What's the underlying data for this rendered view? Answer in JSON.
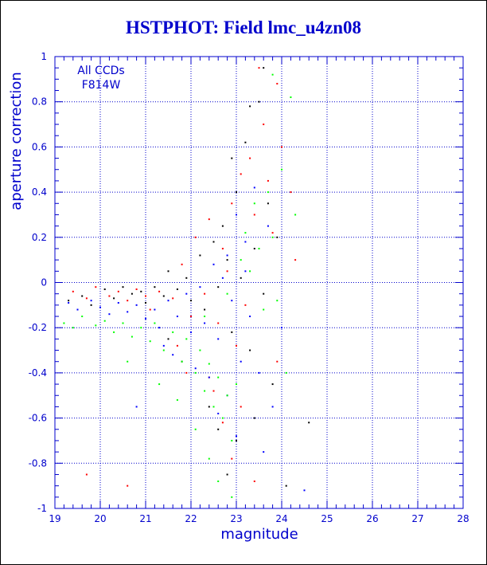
{
  "chart_data": {
    "type": "scatter",
    "title": "HSTPHOT: Field lmc_u4zn08",
    "xlabel": "magnitude",
    "ylabel": "aperture correction",
    "xlim": [
      19,
      28
    ],
    "ylim": [
      -1,
      1
    ],
    "x_ticks": [
      19,
      20,
      21,
      22,
      23,
      24,
      25,
      26,
      27,
      28
    ],
    "y_ticks": [
      -1,
      -0.8,
      -0.6,
      -0.4,
      -0.2,
      0,
      0.2,
      0.4,
      0.6,
      0.8,
      1
    ],
    "grid": true,
    "annotations": [
      "All CCDs",
      "F814W"
    ],
    "colors": {
      "axis": "#0000cc",
      "title": "#0000cc",
      "grid": "#0000cc"
    },
    "series": [
      {
        "color": "#000000",
        "points": [
          [
            19.3,
            -0.08
          ],
          [
            19.6,
            -0.06
          ],
          [
            19.8,
            -0.1
          ],
          [
            20.1,
            -0.03
          ],
          [
            20.3,
            -0.07
          ],
          [
            20.5,
            -0.02
          ],
          [
            20.7,
            -0.05
          ],
          [
            20.9,
            -0.04
          ],
          [
            21.0,
            -0.09
          ],
          [
            21.2,
            -0.02
          ],
          [
            21.4,
            -0.06
          ],
          [
            21.5,
            0.05
          ],
          [
            21.7,
            -0.03
          ],
          [
            21.9,
            0.02
          ],
          [
            22.0,
            -0.08
          ],
          [
            22.2,
            0.12
          ],
          [
            22.3,
            -0.12
          ],
          [
            22.5,
            0.18
          ],
          [
            22.6,
            -0.02
          ],
          [
            22.7,
            0.25
          ],
          [
            22.8,
            0.1
          ],
          [
            22.9,
            -0.22
          ],
          [
            23.0,
            0.4
          ],
          [
            23.1,
            0.02
          ],
          [
            23.2,
            0.62
          ],
          [
            23.3,
            -0.3
          ],
          [
            23.4,
            0.15
          ],
          [
            23.5,
            0.8
          ],
          [
            23.6,
            -0.05
          ],
          [
            23.7,
            0.35
          ],
          [
            23.8,
            -0.45
          ],
          [
            23.9,
            0.2
          ],
          [
            22.4,
            -0.55
          ],
          [
            22.6,
            -0.65
          ],
          [
            23.0,
            -0.7
          ],
          [
            22.8,
            -0.85
          ],
          [
            23.4,
            -0.6
          ],
          [
            21.8,
            -0.35
          ],
          [
            21.5,
            -0.25
          ],
          [
            24.1,
            -0.9
          ],
          [
            24.6,
            -0.62
          ],
          [
            22.9,
            0.55
          ],
          [
            23.3,
            0.78
          ],
          [
            23.6,
            0.95
          ]
        ]
      },
      {
        "color": "#ff0000",
        "points": [
          [
            19.4,
            -0.04
          ],
          [
            19.7,
            -0.07
          ],
          [
            19.9,
            -0.02
          ],
          [
            20.2,
            -0.06
          ],
          [
            20.4,
            -0.04
          ],
          [
            20.6,
            -0.08
          ],
          [
            20.8,
            -0.03
          ],
          [
            21.0,
            -0.06
          ],
          [
            21.1,
            -0.12
          ],
          [
            21.3,
            -0.04
          ],
          [
            21.6,
            -0.07
          ],
          [
            21.8,
            0.08
          ],
          [
            22.0,
            -0.15
          ],
          [
            22.1,
            0.2
          ],
          [
            22.3,
            -0.05
          ],
          [
            22.4,
            0.28
          ],
          [
            22.6,
            -0.18
          ],
          [
            22.7,
            0.15
          ],
          [
            22.9,
            0.35
          ],
          [
            23.0,
            -0.28
          ],
          [
            23.1,
            0.48
          ],
          [
            23.2,
            -0.1
          ],
          [
            23.3,
            0.55
          ],
          [
            23.4,
            0.3
          ],
          [
            23.5,
            0.95
          ],
          [
            23.6,
            0.7
          ],
          [
            23.7,
            0.45
          ],
          [
            23.8,
            0.22
          ],
          [
            23.9,
            -0.35
          ],
          [
            24.0,
            0.6
          ],
          [
            24.2,
            0.4
          ],
          [
            22.5,
            -0.48
          ],
          [
            22.7,
            -0.62
          ],
          [
            23.1,
            -0.55
          ],
          [
            22.9,
            -0.78
          ],
          [
            23.4,
            -0.88
          ],
          [
            21.9,
            -0.4
          ],
          [
            21.7,
            -0.28
          ],
          [
            20.6,
            -0.9
          ],
          [
            19.7,
            -0.85
          ],
          [
            24.3,
            0.1
          ],
          [
            23.9,
            0.88
          ],
          [
            22.8,
            0.05
          ],
          [
            22.4,
            -0.42
          ]
        ]
      },
      {
        "color": "#0000ff",
        "points": [
          [
            19.3,
            -0.09
          ],
          [
            19.5,
            -0.12
          ],
          [
            19.8,
            -0.08
          ],
          [
            20.0,
            -0.11
          ],
          [
            20.2,
            -0.14
          ],
          [
            20.4,
            -0.09
          ],
          [
            20.6,
            -0.13
          ],
          [
            20.8,
            -0.1
          ],
          [
            21.0,
            -0.16
          ],
          [
            21.2,
            -0.12
          ],
          [
            21.3,
            -0.2
          ],
          [
            21.5,
            -0.08
          ],
          [
            21.7,
            -0.15
          ],
          [
            21.9,
            -0.05
          ],
          [
            22.0,
            -0.22
          ],
          [
            22.2,
            -0.02
          ],
          [
            22.3,
            -0.18
          ],
          [
            22.5,
            0.08
          ],
          [
            22.6,
            -0.25
          ],
          [
            22.8,
            0.12
          ],
          [
            22.9,
            -0.08
          ],
          [
            23.0,
            0.3
          ],
          [
            23.1,
            -0.35
          ],
          [
            23.2,
            0.18
          ],
          [
            23.3,
            -0.15
          ],
          [
            23.4,
            0.42
          ],
          [
            23.5,
            -0.4
          ],
          [
            23.7,
            0.25
          ],
          [
            23.8,
            -0.55
          ],
          [
            24.0,
            -0.2
          ],
          [
            22.4,
            -0.42
          ],
          [
            22.6,
            -0.58
          ],
          [
            23.0,
            -0.68
          ],
          [
            22.8,
            -0.5
          ],
          [
            21.6,
            -0.32
          ],
          [
            21.4,
            -0.28
          ],
          [
            20.8,
            -0.55
          ],
          [
            24.5,
            -0.92
          ],
          [
            23.6,
            -0.75
          ],
          [
            22.1,
            -0.38
          ],
          [
            23.2,
            0.05
          ],
          [
            22.7,
            0.02
          ]
        ]
      },
      {
        "color": "#00ff00",
        "points": [
          [
            19.2,
            -0.18
          ],
          [
            19.4,
            -0.2
          ],
          [
            19.6,
            -0.15
          ],
          [
            19.9,
            -0.19
          ],
          [
            20.1,
            -0.17
          ],
          [
            20.3,
            -0.22
          ],
          [
            20.5,
            -0.18
          ],
          [
            20.7,
            -0.24
          ],
          [
            20.9,
            -0.2
          ],
          [
            21.1,
            -0.26
          ],
          [
            21.2,
            -0.18
          ],
          [
            21.4,
            -0.3
          ],
          [
            21.6,
            -0.22
          ],
          [
            21.8,
            -0.35
          ],
          [
            21.9,
            -0.25
          ],
          [
            22.1,
            -0.4
          ],
          [
            22.2,
            -0.3
          ],
          [
            22.3,
            -0.48
          ],
          [
            22.4,
            -0.36
          ],
          [
            22.5,
            -0.55
          ],
          [
            22.6,
            -0.42
          ],
          [
            22.7,
            -0.6
          ],
          [
            22.8,
            -0.5
          ],
          [
            22.9,
            -0.7
          ],
          [
            23.0,
            -0.45
          ],
          [
            23.1,
            0.1
          ],
          [
            23.2,
            0.22
          ],
          [
            23.3,
            0.05
          ],
          [
            23.4,
            0.35
          ],
          [
            23.5,
            0.15
          ],
          [
            23.6,
            -0.12
          ],
          [
            23.7,
            0.4
          ],
          [
            23.8,
            0.2
          ],
          [
            23.9,
            -0.08
          ],
          [
            24.0,
            0.5
          ],
          [
            24.2,
            0.82
          ],
          [
            24.3,
            0.3
          ],
          [
            22.4,
            -0.78
          ],
          [
            22.6,
            -0.88
          ],
          [
            22.9,
            -0.95
          ],
          [
            22.1,
            -0.65
          ],
          [
            21.7,
            -0.52
          ],
          [
            21.3,
            -0.45
          ],
          [
            20.6,
            -0.35
          ],
          [
            24.1,
            -0.4
          ],
          [
            23.8,
            0.92
          ],
          [
            22.8,
            -0.05
          ],
          [
            22.3,
            -0.15
          ]
        ]
      }
    ]
  }
}
